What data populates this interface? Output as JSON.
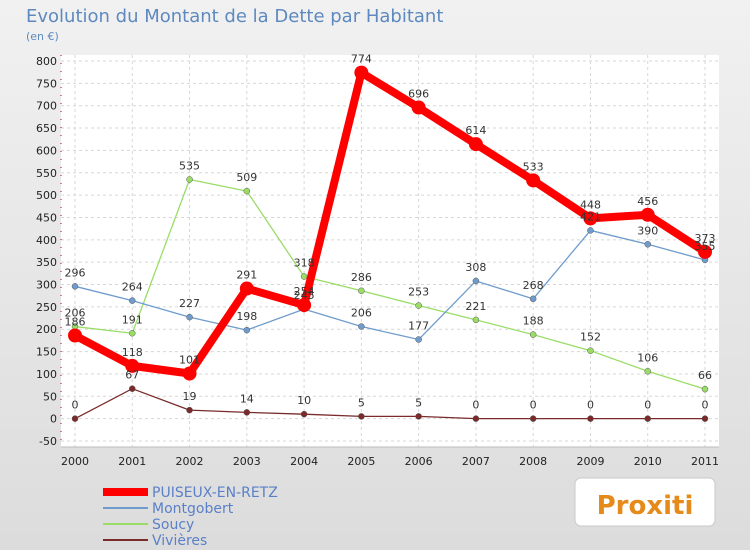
{
  "chart_data": {
    "type": "line",
    "title": "Evolution du Montant de la Dette par Habitant",
    "ylabel": "(en €)",
    "ylim": [
      -50,
      800
    ],
    "yticks": [
      -50,
      0,
      50,
      100,
      150,
      200,
      250,
      300,
      350,
      400,
      450,
      500,
      550,
      600,
      650,
      700,
      750,
      800
    ],
    "categories": [
      "2000",
      "2001",
      "2002",
      "2003",
      "2004",
      "2005",
      "2006",
      "2007",
      "2008",
      "2009",
      "2010",
      "2011"
    ],
    "grid": true,
    "legend": "bottom-left",
    "series": [
      {
        "name": "PUISEUX-EN-RETZ",
        "color": "#ff0000",
        "values": [
          186,
          118,
          101,
          291,
          254,
          774,
          696,
          614,
          533,
          448,
          456,
          373
        ]
      },
      {
        "name": "Montgobert",
        "color": "#6f9ccc",
        "values": [
          296,
          264,
          227,
          198,
          245,
          206,
          177,
          308,
          268,
          421,
          390,
          355
        ]
      },
      {
        "name": "Soucy",
        "color": "#99dd66",
        "values": [
          206,
          191,
          535,
          509,
          318,
          286,
          253,
          221,
          188,
          152,
          106,
          66
        ]
      },
      {
        "name": "Vivières",
        "color": "#7a2a2a",
        "values": [
          0,
          67,
          19,
          14,
          10,
          5,
          5,
          0,
          0,
          0,
          0,
          0
        ]
      }
    ]
  },
  "logo": {
    "text": "Proxiti"
  }
}
